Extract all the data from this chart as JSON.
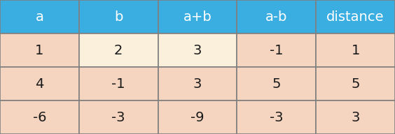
{
  "columns": [
    "a",
    "b",
    "a+b",
    "a-b",
    "distance"
  ],
  "rows": [
    [
      "1",
      "2",
      "3",
      "-1",
      "1"
    ],
    [
      "4",
      "-1",
      "3",
      "5",
      "5"
    ],
    [
      "-6",
      "-3",
      "-9",
      "-3",
      "3"
    ]
  ],
  "header_bg": "#3AADE1",
  "header_text": "#FFFFFF",
  "row_bg_pink": "#F5D5C0",
  "row_bg_cream": "#FAF0DC",
  "cell_text": "#1A1A1A",
  "border_color": "#808080",
  "header_fontsize": 14,
  "cell_fontsize": 14,
  "fig_width": 5.64,
  "fig_height": 1.92,
  "dpi": 100
}
